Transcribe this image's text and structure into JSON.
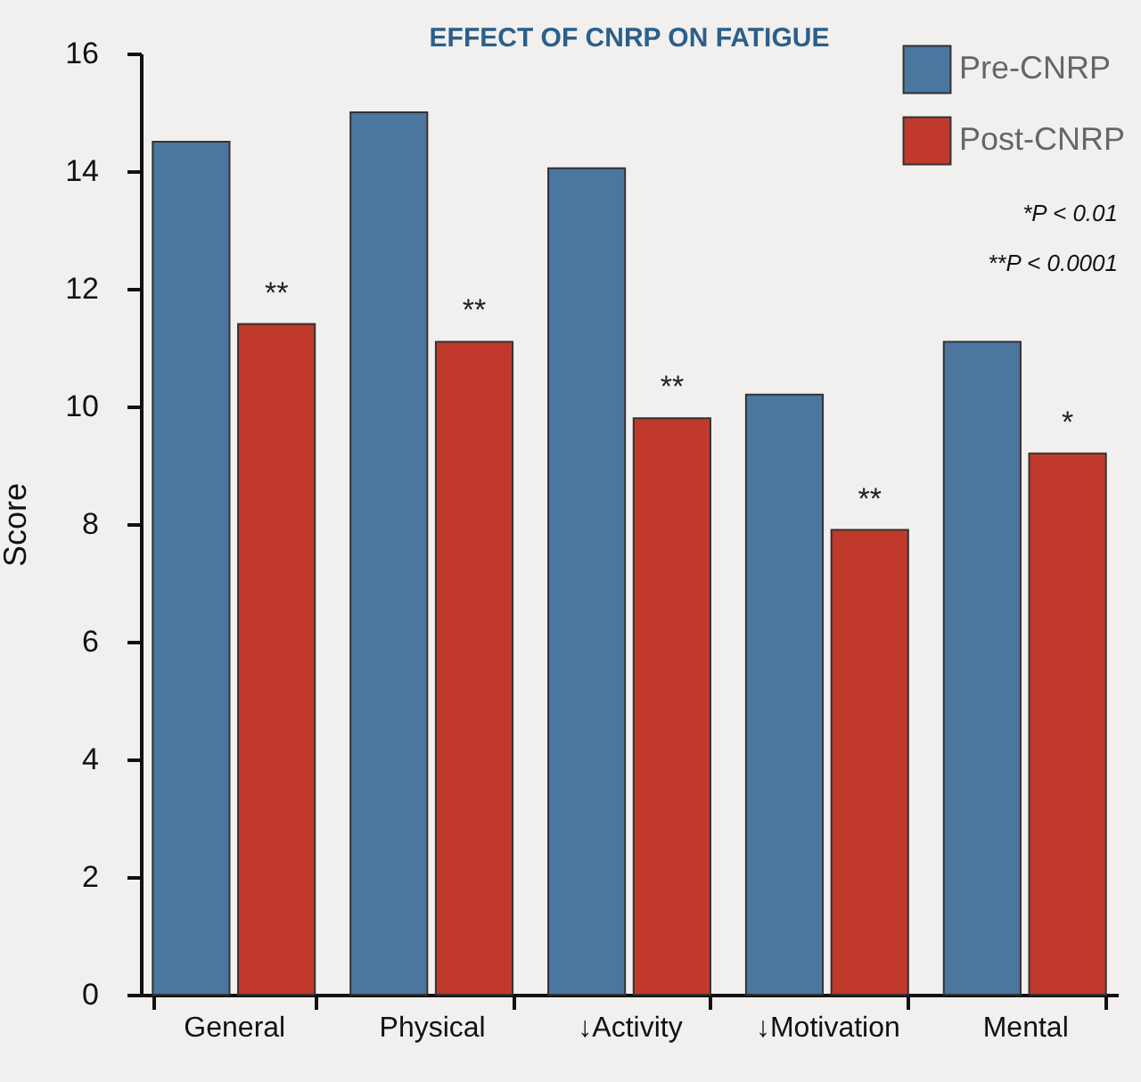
{
  "chart_data": {
    "type": "bar",
    "title": "EFFECT OF CNRP ON FATIGUE",
    "ylabel": "Score",
    "categories": [
      "General",
      "Physical",
      "↓Activity",
      "↓Motivation",
      "Mental"
    ],
    "series": [
      {
        "name": "Pre-CNRP",
        "color": "#4a76a0",
        "values": [
          14.5,
          15.0,
          14.05,
          10.2,
          11.1
        ]
      },
      {
        "name": "Post-CNRP",
        "color": "#c0392b",
        "values": [
          11.4,
          11.1,
          9.8,
          7.9,
          9.2
        ],
        "value_labels": [
          "**",
          "**",
          "**",
          "**",
          "*"
        ]
      }
    ],
    "ylim": [
      0,
      16
    ],
    "yticks": [
      0,
      2,
      4,
      6,
      8,
      10,
      12,
      14,
      16
    ],
    "grid": false,
    "legend": "top right",
    "annotations": [
      "*P < 0.01",
      "**P < 0.0001"
    ]
  }
}
